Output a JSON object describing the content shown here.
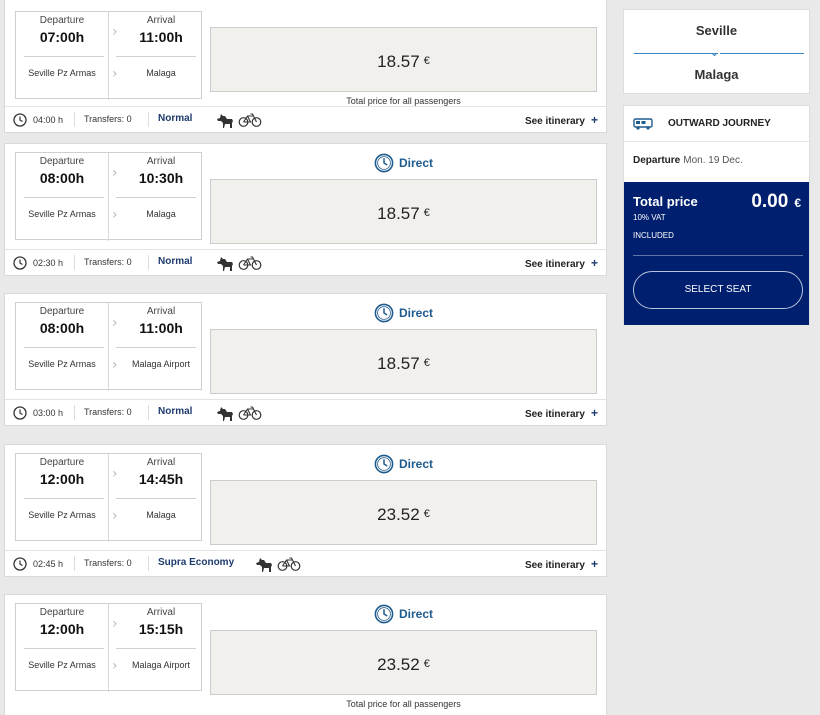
{
  "journey_summary": {
    "from": "Seville",
    "to": "Malaga"
  },
  "outward": {
    "title": "OUTWARD JOURNEY",
    "departure_label": "Departure",
    "departure_date": "Mon. 19 Dec.",
    "total_label": "Total price",
    "vat_label": "10% VAT",
    "included_label": "INCLUDED",
    "total_amount": "0.00",
    "currency": "€",
    "select_seat": "SELECT SEAT"
  },
  "labels": {
    "departure": "Departure",
    "arrival": "Arrival",
    "total_note": "Total price for all passengers",
    "see_itinerary": "See itinerary",
    "plus": "+",
    "direct": "Direct",
    "currency": "€"
  },
  "results": [
    {
      "dep_time": "07:00h",
      "arr_time": "11:00h",
      "dep_station": "Seville Pz Armas",
      "arr_station": "Malaga",
      "price": "18.57",
      "duration": "04:00 h",
      "transfers": "Transfers: 0",
      "fare": "Normal",
      "direct": false
    },
    {
      "dep_time": "08:00h",
      "arr_time": "10:30h",
      "dep_station": "Seville Pz Armas",
      "arr_station": "Malaga",
      "price": "18.57",
      "duration": "02:30 h",
      "transfers": "Transfers: 0",
      "fare": "Normal",
      "direct": true
    },
    {
      "dep_time": "08:00h",
      "arr_time": "11:00h",
      "dep_station": "Seville Pz Armas",
      "arr_station": "Malaga Airport",
      "price": "18.57",
      "duration": "03:00 h",
      "transfers": "Transfers: 0",
      "fare": "Normal",
      "direct": true
    },
    {
      "dep_time": "12:00h",
      "arr_time": "14:45h",
      "dep_station": "Seville Pz Armas",
      "arr_station": "Malaga",
      "price": "23.52",
      "duration": "02:45 h",
      "transfers": "Transfers: 0",
      "fare": "Supra Economy",
      "direct": true
    },
    {
      "dep_time": "12:00h",
      "arr_time": "15:15h",
      "dep_station": "Seville Pz Armas",
      "arr_station": "Malaga Airport",
      "price": "23.52",
      "direct": true
    }
  ],
  "icons": {
    "duration": "clock-icon",
    "pets": "dog-icon",
    "bikes": "bicycle-icon",
    "direct": "clock-icon",
    "bus": "bus-icon",
    "chevron": "chevron-right-icon"
  },
  "colors": {
    "accent": "#1d3b6e",
    "panel": "#001f6e",
    "link": "#1e5b8e",
    "divider": "#3b86c6"
  }
}
